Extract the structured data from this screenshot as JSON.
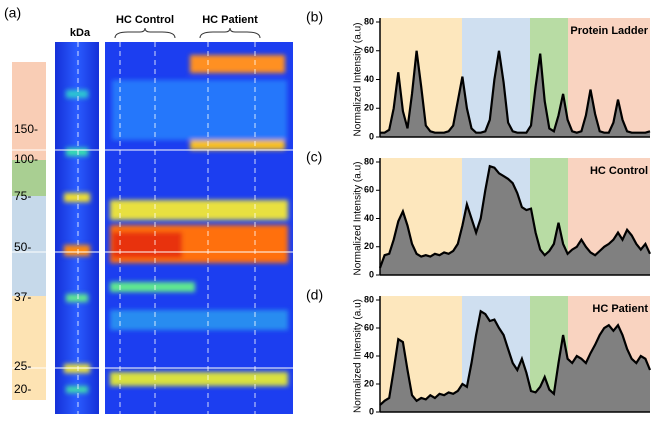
{
  "gel": {
    "panel_label": "(a)",
    "kda_header": "kDa",
    "groups": [
      "HC Control",
      "HC Patient"
    ],
    "markers": [
      "150-",
      "100-",
      "75-",
      "50-",
      "37-",
      "25-",
      "20-"
    ]
  },
  "chart_data": [
    {
      "type": "area",
      "panel_label": "(b)",
      "title": "Protein Ladder",
      "y_label": "Normalized Intensity (a.u)",
      "ylim": [
        0,
        80
      ],
      "yticks": [
        0,
        20,
        40,
        60,
        80
      ],
      "color": "#808080",
      "values": [
        3,
        3,
        5,
        20,
        45,
        18,
        6,
        30,
        60,
        35,
        8,
        4,
        3,
        3,
        3,
        4,
        8,
        25,
        42,
        20,
        6,
        3,
        3,
        4,
        12,
        40,
        60,
        38,
        10,
        4,
        3,
        3,
        3,
        8,
        35,
        58,
        25,
        6,
        4,
        15,
        30,
        12,
        4,
        3,
        4,
        15,
        33,
        16,
        4,
        3,
        3,
        10,
        26,
        12,
        4,
        3,
        3,
        3,
        3,
        4
      ]
    },
    {
      "type": "area",
      "panel_label": "(c)",
      "title": "HC Control",
      "y_label": "Normalized Intensity (a.u)",
      "ylim": [
        0,
        80
      ],
      "yticks": [
        0,
        20,
        40,
        60,
        80
      ],
      "color": "#808080",
      "values": [
        5,
        14,
        15,
        25,
        38,
        45,
        35,
        22,
        15,
        13,
        14,
        13,
        15,
        14,
        16,
        15,
        17,
        22,
        35,
        50,
        40,
        30,
        40,
        60,
        77,
        76,
        72,
        70,
        68,
        65,
        58,
        48,
        46,
        47,
        30,
        18,
        14,
        17,
        22,
        37,
        22,
        15,
        18,
        20,
        25,
        20,
        16,
        14,
        17,
        20,
        22,
        25,
        30,
        25,
        32,
        28,
        22,
        18,
        22,
        15
      ]
    },
    {
      "type": "area",
      "panel_label": "(d)",
      "title": "HC Patient",
      "y_label": "Normalized Intensity (a.u)",
      "ylim": [
        0,
        80
      ],
      "yticks": [
        0,
        20,
        40,
        60,
        80
      ],
      "color": "#808080",
      "values": [
        5,
        8,
        10,
        30,
        52,
        50,
        30,
        12,
        8,
        10,
        9,
        12,
        10,
        13,
        12,
        14,
        13,
        15,
        20,
        18,
        35,
        55,
        72,
        70,
        65,
        66,
        60,
        55,
        45,
        35,
        30,
        38,
        28,
        15,
        14,
        18,
        25,
        16,
        13,
        35,
        55,
        38,
        35,
        40,
        38,
        35,
        42,
        48,
        55,
        60,
        62,
        58,
        62,
        55,
        45,
        38,
        35,
        40,
        38,
        30
      ]
    }
  ]
}
